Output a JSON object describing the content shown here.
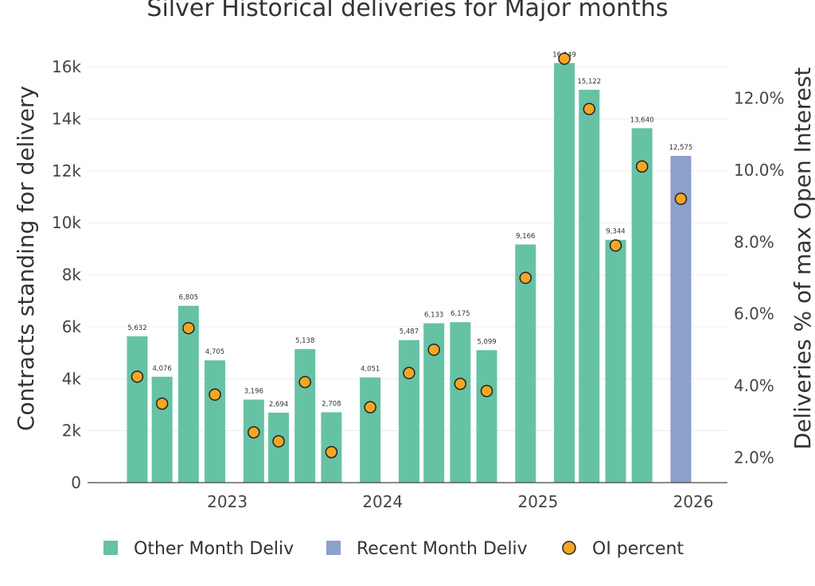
{
  "chart_data": {
    "type": "bar",
    "title": "Silver Historical deliveries for Major months",
    "ylabel": "Contracts standing for delivery",
    "y2label": "Deliveries % of max Open Interest",
    "ylim": [
      0,
      16800
    ],
    "y2lim": [
      1.3,
      13.45
    ],
    "yticks": [
      0,
      2000,
      4000,
      6000,
      8000,
      10000,
      12000,
      14000,
      16000
    ],
    "ytick_labels": [
      "0",
      "2k",
      "4k",
      "6k",
      "8k",
      "10k",
      "12k",
      "14k",
      "16k"
    ],
    "y2ticks": [
      2,
      4,
      6,
      8,
      10,
      12
    ],
    "y2tick_labels": [
      "2.0%",
      "4.0%",
      "6.0%",
      "8.0%",
      "10.0%",
      "12.0%"
    ],
    "xlim": [
      2022.1,
      2026.22
    ],
    "xticks": [
      2023,
      2024,
      2025,
      2026
    ],
    "xtick_labels": [
      "2023",
      "2024",
      "2025",
      "2026"
    ],
    "colors": {
      "other": "#66c2a5",
      "recent": "#8da0cb",
      "oi": "#f5a623",
      "oi_stroke": "#222222",
      "axis": "#444444",
      "grid": "#ececec"
    },
    "legend": {
      "position": "bottom",
      "items": [
        {
          "label": "Other Month Deliv",
          "kind": "bar",
          "series": "other"
        },
        {
          "label": "Recent Month Deliv",
          "kind": "bar",
          "series": "recent"
        },
        {
          "label": "OI percent",
          "kind": "marker",
          "series": "oi"
        }
      ]
    },
    "points": [
      {
        "x": 2022.42,
        "value": 5632,
        "label": "5,632",
        "oi": 4.25,
        "series": "other"
      },
      {
        "x": 2022.58,
        "value": 4076,
        "label": "4,076",
        "oi": 3.5,
        "series": "other"
      },
      {
        "x": 2022.75,
        "value": 6805,
        "label": "6,805",
        "oi": 5.6,
        "series": "other"
      },
      {
        "x": 2022.92,
        "value": 4705,
        "label": "4,705",
        "oi": 3.75,
        "series": "other"
      },
      {
        "x": 2023.17,
        "value": 3196,
        "label": "3,196",
        "oi": 2.7,
        "series": "other"
      },
      {
        "x": 2023.33,
        "value": 2694,
        "label": "2,694",
        "oi": 2.45,
        "series": "other"
      },
      {
        "x": 2023.5,
        "value": 5138,
        "label": "5,138",
        "oi": 4.1,
        "series": "other"
      },
      {
        "x": 2023.67,
        "value": 2708,
        "label": "2,708",
        "oi": 2.15,
        "series": "other"
      },
      {
        "x": 2023.92,
        "value": 4051,
        "label": "4,051",
        "oi": 3.4,
        "series": "other"
      },
      {
        "x": 2024.17,
        "value": 5487,
        "label": "5,487",
        "oi": 4.35,
        "series": "other"
      },
      {
        "x": 2024.33,
        "value": 6133,
        "label": "6,133",
        "oi": 5.0,
        "series": "other"
      },
      {
        "x": 2024.5,
        "value": 6175,
        "label": "6,175",
        "oi": 4.05,
        "series": "other"
      },
      {
        "x": 2024.67,
        "value": 5099,
        "label": "5,099",
        "oi": 3.85,
        "series": "other"
      },
      {
        "x": 2024.92,
        "value": 9166,
        "label": "9,166",
        "oi": 7.0,
        "series": "other"
      },
      {
        "x": 2025.17,
        "value": 16149,
        "label": "16,149",
        "oi": 13.1,
        "series": "other"
      },
      {
        "x": 2025.33,
        "value": 15122,
        "label": "15,122",
        "oi": 11.7,
        "series": "other"
      },
      {
        "x": 2025.5,
        "value": 9344,
        "label": "9,344",
        "oi": 7.9,
        "series": "other"
      },
      {
        "x": 2025.67,
        "value": 13640,
        "label": "13,640",
        "oi": 10.1,
        "series": "other"
      },
      {
        "x": 2025.92,
        "value": 12575,
        "label": "12,575",
        "oi": 9.2,
        "series": "recent"
      }
    ]
  }
}
